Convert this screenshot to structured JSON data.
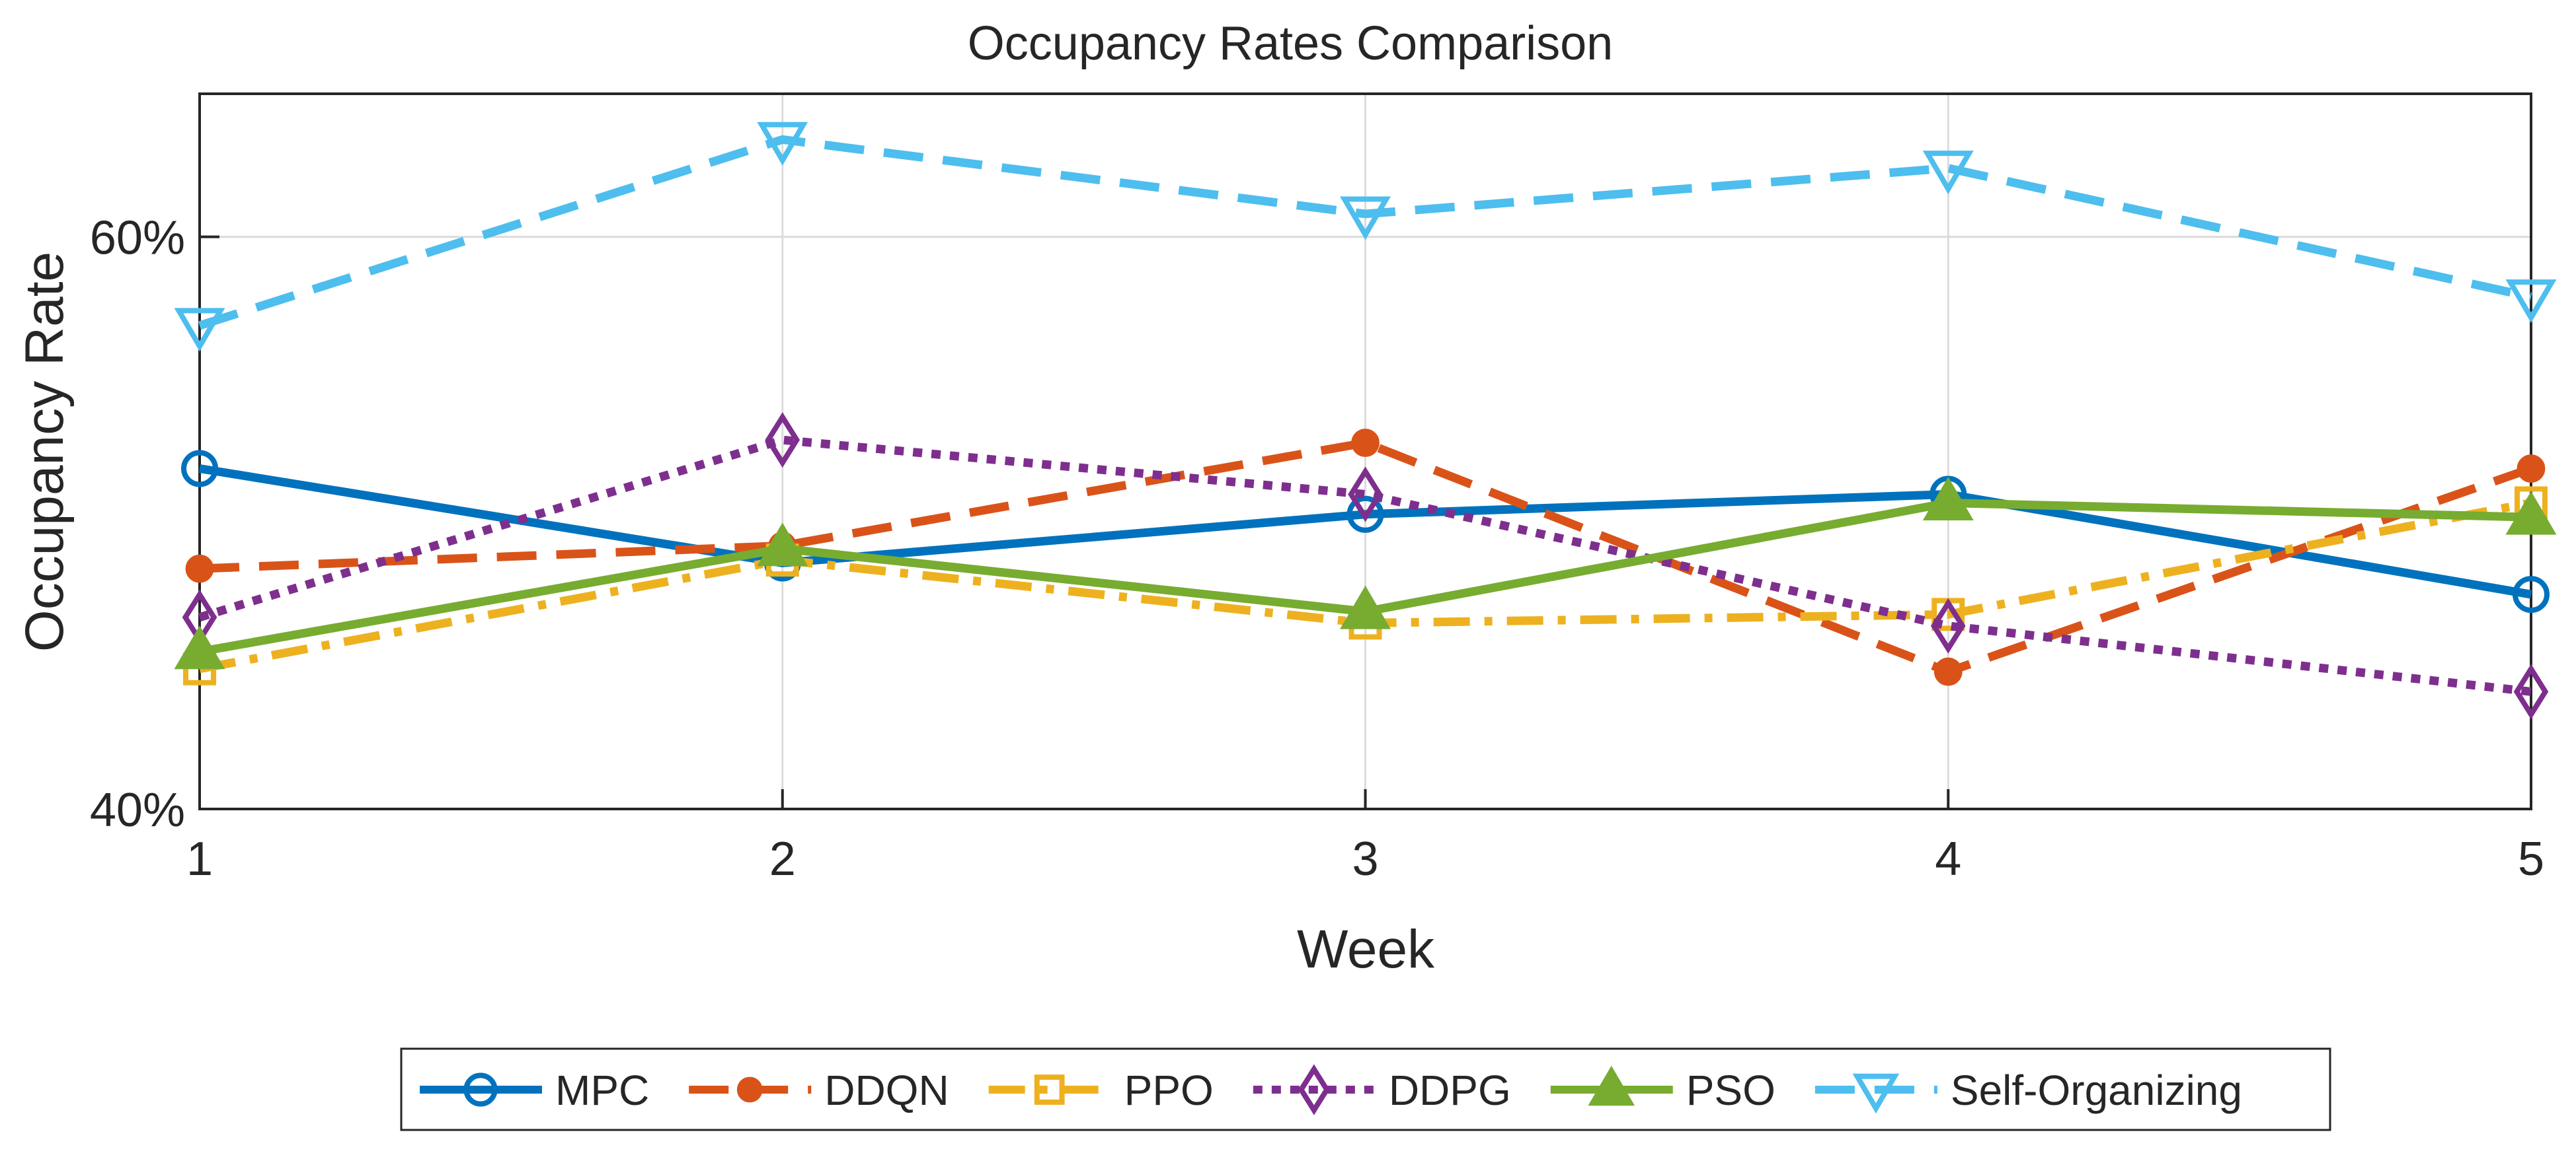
{
  "chart_data": {
    "type": "line",
    "title": "Occupancy Rates Comparison",
    "xlabel": "Week",
    "ylabel": "Occupancy Rate",
    "x": [
      1,
      2,
      3,
      4,
      5
    ],
    "xticks": [
      "1",
      "2",
      "3",
      "4",
      "5"
    ],
    "ylim": [
      0.4,
      0.65
    ],
    "yticks": [
      0.4,
      0.6
    ],
    "ytick_labels": [
      "40%",
      "60%"
    ],
    "grid": true,
    "legend_position": "bottom",
    "series": [
      {
        "name": "MPC",
        "values": [
          0.519,
          0.486,
          0.503,
          0.51,
          0.475
        ],
        "color": "#0072BD",
        "dash": "solid",
        "marker": "circle"
      },
      {
        "name": "DDQN",
        "values": [
          0.484,
          0.492,
          0.528,
          0.448,
          0.519
        ],
        "color": "#D95319",
        "dash": "dashed",
        "marker": "dot"
      },
      {
        "name": "PPO",
        "values": [
          0.449,
          0.487,
          0.465,
          0.468,
          0.507
        ],
        "color": "#EDB120",
        "dash": "dashdot",
        "marker": "square"
      },
      {
        "name": "DDPG",
        "values": [
          0.467,
          0.529,
          0.51,
          0.464,
          0.441
        ],
        "color": "#7E2F8E",
        "dash": "dotted",
        "marker": "diamond"
      },
      {
        "name": "PSO",
        "values": [
          0.455,
          0.491,
          0.469,
          0.507,
          0.502
        ],
        "color": "#77AC30",
        "dash": "solid",
        "marker": "triangle-up"
      },
      {
        "name": "Self-Organizing",
        "values": [
          0.569,
          0.634,
          0.608,
          0.624,
          0.579
        ],
        "color": "#4DBEEE",
        "dash": "dashed",
        "marker": "triangle-down"
      }
    ]
  }
}
